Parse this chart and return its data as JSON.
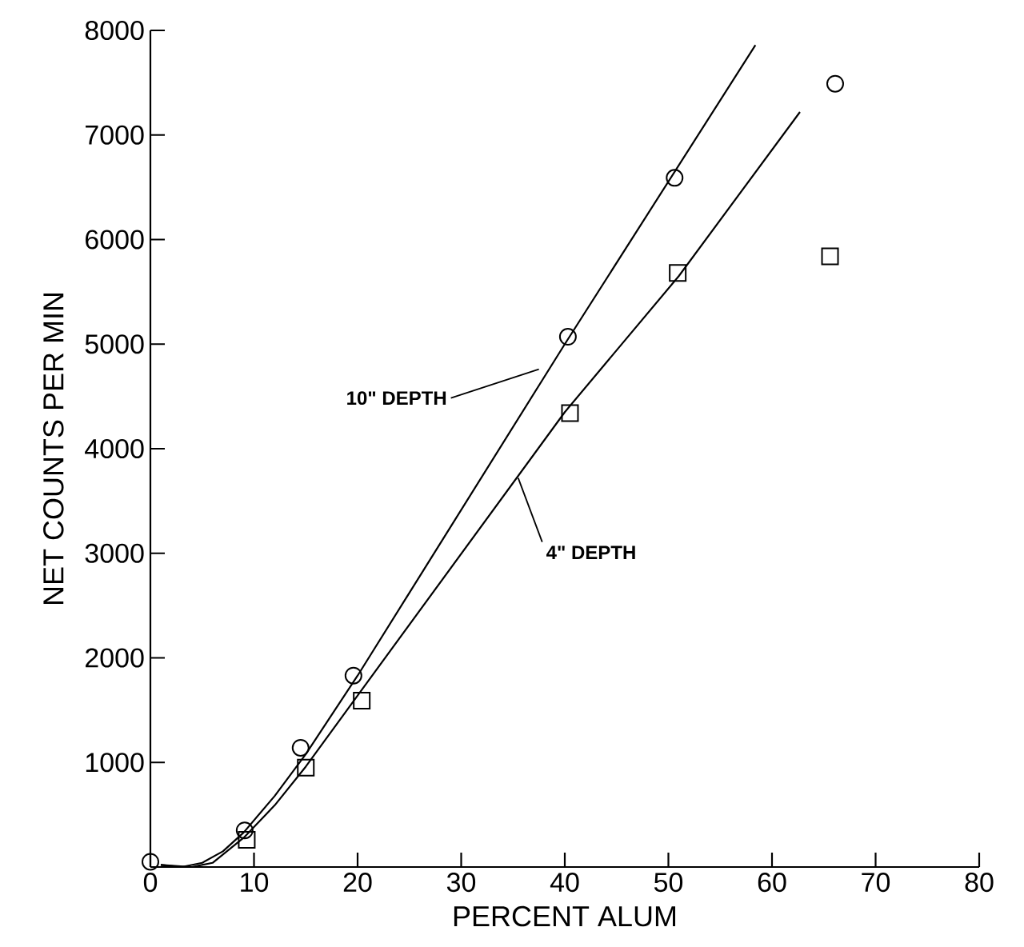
{
  "chart_data": {
    "type": "scatter",
    "xlabel": "PERCENT ALUM",
    "ylabel": "NET COUNTS PER MIN",
    "xlim": [
      0,
      80
    ],
    "ylim": [
      0,
      8000
    ],
    "xticks": [
      0,
      10,
      20,
      30,
      40,
      50,
      60,
      70,
      80
    ],
    "yticks": [
      1000,
      2000,
      3000,
      4000,
      5000,
      6000,
      7000,
      8000
    ],
    "series": [
      {
        "marker": "circle",
        "color": "#000000",
        "x": [
          0,
          9.1,
          14.5,
          19.6,
          40.3,
          50.6,
          66.1
        ],
        "values": [
          50,
          350,
          1140,
          1830,
          5070,
          6590,
          7490
        ]
      },
      {
        "marker": "square",
        "color": "#000000",
        "x": [
          9.3,
          15,
          20.4,
          40.5,
          50.9,
          65.6
        ],
        "values": [
          260,
          950,
          1590,
          4340,
          5680,
          5840
        ]
      },
      {
        "type": "line",
        "marker": "none",
        "line_style": "solid",
        "color": "#000000",
        "x": [
          1,
          3,
          5,
          7,
          9,
          12,
          15,
          20,
          40,
          58.4
        ],
        "values": [
          20,
          0,
          40,
          150,
          330,
          680,
          1080,
          1830,
          5000,
          7860
        ]
      },
      {
        "type": "line",
        "marker": "none",
        "line_style": "solid",
        "color": "#000000",
        "x": [
          1,
          4,
          6,
          9,
          12,
          15,
          20,
          40,
          51,
          62.7
        ],
        "values": [
          20,
          0,
          40,
          280,
          590,
          960,
          1640,
          4350,
          5650,
          7220
        ]
      }
    ],
    "annotations": [
      {
        "text": "10\" DEPTH",
        "x": 37.5,
        "y": 4760
      },
      {
        "text": "4\" DEPTH",
        "x": 35.5,
        "y": 3720
      }
    ]
  }
}
